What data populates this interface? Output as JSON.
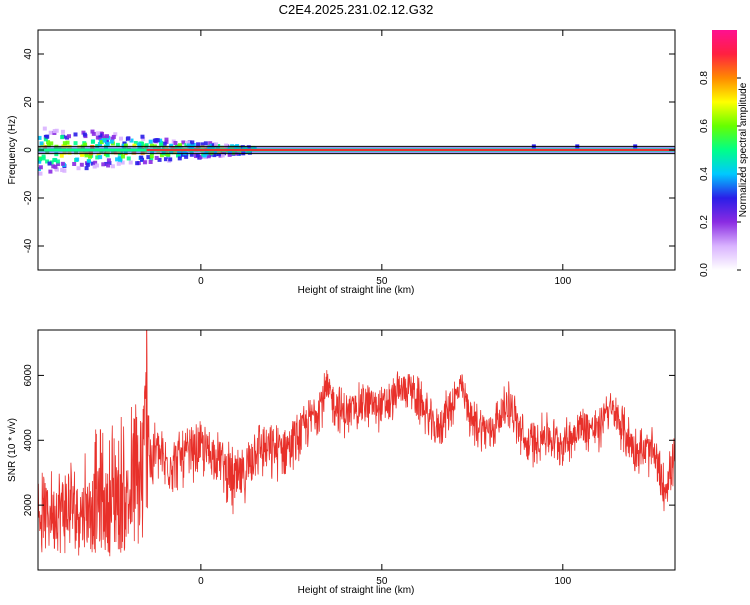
{
  "title": "C2E4.2025.231.02.12.G32",
  "colors": {
    "trace": "#e8302a",
    "axis": "#000000",
    "ridge": "#e8302a",
    "band_line": "#000000"
  },
  "colorbar": {
    "label": "Normalized spectral amplitude",
    "ticks": [
      "0.0",
      "0.2",
      "0.4",
      "0.6",
      "0.8"
    ],
    "tick_values": [
      0.0,
      0.2,
      0.4,
      0.6,
      0.8
    ],
    "range": [
      0,
      1
    ],
    "colormap": [
      "#ffffff",
      "#d9b3ff",
      "#8a2be2",
      "#2a1ee8",
      "#00c8ff",
      "#00ff88",
      "#66ff00",
      "#ffff00",
      "#ff8a00",
      "#ff2040",
      "#ff1090"
    ]
  },
  "chart_data": [
    {
      "type": "heatmap",
      "title": "C2E4.2025.231.02.12.G32",
      "xlabel": "Height of straight line (km)",
      "ylabel": "Frequency (Hz)",
      "xlim": [
        -45,
        131
      ],
      "ylim": [
        -50,
        50
      ],
      "xticks": [
        0,
        50,
        100
      ],
      "yticks": [
        -40,
        -20,
        0,
        20,
        40
      ],
      "reference_lines_hz": [
        1.5,
        -1.5
      ],
      "spectral_ridge": {
        "frequency_hz": 0,
        "noisy_segment_km": [
          -45,
          15
        ],
        "clean_segment_km": [
          15,
          131
        ],
        "spread_hz_at_start": 10,
        "spread_hz_at_end": 1
      }
    },
    {
      "type": "line",
      "xlabel": "Height of straight line (km)",
      "ylabel": "SNR (10 * v/v)",
      "xlim": [
        -45,
        131
      ],
      "ylim": [
        0,
        7400
      ],
      "xticks": [
        0,
        50,
        100
      ],
      "yticks": [
        2000,
        4000,
        6000
      ],
      "series": [
        {
          "x": [
            -45,
            -40,
            -35,
            -30,
            -25,
            -20,
            -16,
            -15,
            -14,
            -12,
            -10,
            -5,
            0,
            5,
            10,
            12,
            15,
            20,
            25,
            30,
            33,
            35,
            40,
            45,
            50,
            55,
            57,
            60,
            65,
            70,
            72,
            75,
            80,
            85,
            90,
            95,
            100,
            105,
            110,
            112,
            115,
            120,
            125,
            128,
            131
          ],
          "values": [
            1700,
            1800,
            1600,
            1900,
            1800,
            2000,
            2200,
            7100,
            3200,
            3800,
            3300,
            3500,
            3800,
            3500,
            2700,
            3000,
            3900,
            3700,
            3900,
            4600,
            5200,
            5500,
            4800,
            5200,
            5000,
            5500,
            5800,
            5300,
            4300,
            5300,
            5700,
            4600,
            4300,
            5200,
            3800,
            4200,
            3900,
            4500,
            4300,
            5100,
            4700,
            3700,
            3600,
            2500,
            3500
          ],
          "min": [
            400,
            500,
            400,
            500,
            400,
            500,
            600,
            1800,
            1900,
            2700,
            2200,
            2500,
            2800,
            2700,
            1200,
            2000,
            2800,
            2600,
            3000,
            3800,
            4300,
            4600,
            4000,
            4400,
            4200,
            4700,
            5000,
            4500,
            3500,
            4500,
            4900,
            3800,
            3500,
            4400,
            3000,
            3400,
            3100,
            3700,
            3500,
            4300,
            3900,
            2900,
            2800,
            1600,
            2700
          ],
          "max": [
            3000,
            3200,
            3700,
            4300,
            4700,
            5200,
            5600,
            7400,
            4800,
            4600,
            4200,
            4300,
            4600,
            4300,
            3700,
            3800,
            4700,
            4500,
            4700,
            5300,
            6000,
            6200,
            5500,
            5900,
            5700,
            6200,
            6100,
            6000,
            5000,
            6000,
            6100,
            5300,
            5000,
            5900,
            4600,
            4900,
            4600,
            5200,
            5000,
            5600,
            5400,
            4500,
            4400,
            3300,
            4200
          ]
        }
      ]
    }
  ]
}
